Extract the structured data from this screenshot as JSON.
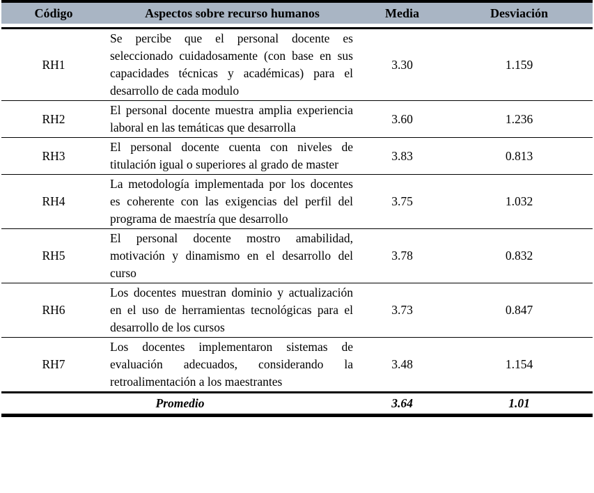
{
  "table": {
    "headers": {
      "code": "Código",
      "aspect": "Aspectos sobre recurso humanos",
      "mean": "Media",
      "deviation": "Desviación"
    },
    "rows": [
      {
        "code": "RH1",
        "aspect": "Se percibe que el personal docente es seleccionado cuidadosamente (con base en sus capacidades técnicas y académicas) para el desarrollo de cada modulo",
        "mean": "3.30",
        "deviation": "1.159"
      },
      {
        "code": "RH2",
        "aspect": "El personal docente muestra amplia experiencia laboral en las temáticas que desarrolla",
        "mean": "3.60",
        "deviation": "1.236"
      },
      {
        "code": "RH3",
        "aspect": "El personal docente cuenta con niveles de titulación igual o superiores al grado de master",
        "mean": "3.83",
        "deviation": "0.813"
      },
      {
        "code": "RH4",
        "aspect": "La metodología implementada por los docentes es coherente con las exigencias del perfil del programa de maestría que desarrollo",
        "mean": "3.75",
        "deviation": "1.032"
      },
      {
        "code": "RH5",
        "aspect": "El personal docente mostro amabilidad, motivación y dinamismo en el desarrollo del curso",
        "mean": "3.78",
        "deviation": "0.832"
      },
      {
        "code": "RH6",
        "aspect": "Los docentes muestran dominio y actualización en el uso de herramientas tecnológicas para el desarrollo de los cursos",
        "mean": "3.73",
        "deviation": "0.847"
      },
      {
        "code": "RH7",
        "aspect": "Los docentes implementaron sistemas de evaluación adecuados, considerando la retroalimentación a los maestrantes",
        "mean": "3.48",
        "deviation": "1.154"
      }
    ],
    "footer": {
      "label": "Promedio",
      "mean": "3.64",
      "deviation": "1.01"
    }
  },
  "colors": {
    "header_bg": "#a9b5c4",
    "border": "#000000"
  }
}
